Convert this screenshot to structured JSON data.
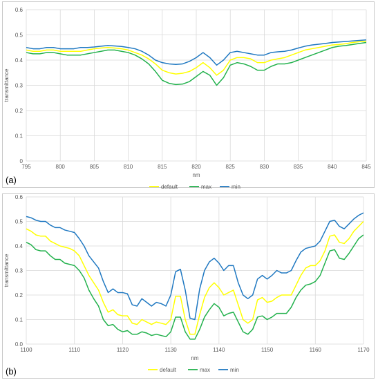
{
  "chart_data": [
    {
      "type": "line",
      "panel_label": "(a)",
      "xlabel": "nm",
      "ylabel": "transmittance",
      "xlim": [
        795,
        845
      ],
      "ylim": [
        0,
        0.6
      ],
      "xticks": [
        795,
        800,
        805,
        810,
        815,
        820,
        825,
        830,
        835,
        840,
        845
      ],
      "yticks": [
        0,
        0.1,
        0.2,
        0.3,
        0.4,
        0.5,
        0.6
      ],
      "ytick_labels": [
        "0",
        "0.1",
        "0.2",
        "0.3",
        "0.4",
        "0.5",
        "0.6"
      ],
      "grid": true,
      "legend_position": "bottom",
      "x": [
        795,
        796,
        797,
        798,
        799,
        800,
        801,
        802,
        803,
        804,
        805,
        806,
        807,
        808,
        809,
        810,
        811,
        812,
        813,
        814,
        815,
        816,
        817,
        818,
        819,
        820,
        821,
        822,
        823,
        824,
        825,
        826,
        827,
        828,
        829,
        830,
        831,
        832,
        833,
        834,
        835,
        836,
        837,
        838,
        839,
        840,
        841,
        842,
        843,
        844,
        845
      ],
      "series": [
        {
          "name": "default",
          "color": "#ffff00",
          "values": [
            0.44,
            0.435,
            0.435,
            0.44,
            0.44,
            0.435,
            0.435,
            0.435,
            0.435,
            0.44,
            0.445,
            0.448,
            0.45,
            0.448,
            0.445,
            0.44,
            0.43,
            0.42,
            0.405,
            0.385,
            0.36,
            0.35,
            0.345,
            0.348,
            0.355,
            0.37,
            0.39,
            0.37,
            0.34,
            0.36,
            0.4,
            0.41,
            0.41,
            0.405,
            0.39,
            0.39,
            0.4,
            0.405,
            0.41,
            0.42,
            0.43,
            0.44,
            0.445,
            0.45,
            0.455,
            0.46,
            0.462,
            0.465,
            0.47,
            0.473,
            0.475
          ]
        },
        {
          "name": "max",
          "color": "#22b14c",
          "values": [
            0.43,
            0.425,
            0.425,
            0.43,
            0.43,
            0.425,
            0.42,
            0.42,
            0.42,
            0.425,
            0.43,
            0.435,
            0.44,
            0.44,
            0.435,
            0.43,
            0.42,
            0.405,
            0.385,
            0.355,
            0.32,
            0.308,
            0.303,
            0.305,
            0.315,
            0.335,
            0.355,
            0.34,
            0.3,
            0.33,
            0.38,
            0.39,
            0.385,
            0.375,
            0.36,
            0.36,
            0.375,
            0.385,
            0.385,
            0.39,
            0.4,
            0.41,
            0.42,
            0.43,
            0.44,
            0.45,
            0.455,
            0.458,
            0.462,
            0.466,
            0.47
          ]
        },
        {
          "name": "min",
          "color": "#1f78c1",
          "values": [
            0.45,
            0.445,
            0.445,
            0.45,
            0.45,
            0.445,
            0.445,
            0.445,
            0.45,
            0.45,
            0.452,
            0.455,
            0.458,
            0.456,
            0.454,
            0.45,
            0.445,
            0.435,
            0.42,
            0.4,
            0.39,
            0.385,
            0.383,
            0.385,
            0.395,
            0.41,
            0.43,
            0.41,
            0.38,
            0.4,
            0.43,
            0.435,
            0.43,
            0.425,
            0.42,
            0.42,
            0.43,
            0.433,
            0.435,
            0.44,
            0.448,
            0.455,
            0.46,
            0.463,
            0.466,
            0.47,
            0.472,
            0.474,
            0.476,
            0.478,
            0.48
          ]
        }
      ]
    },
    {
      "type": "line",
      "panel_label": "(b)",
      "xlabel": "nm",
      "ylabel": "transmittance",
      "xlim": [
        1100,
        1170
      ],
      "ylim": [
        0,
        0.6
      ],
      "xticks": [
        1100,
        1110,
        1120,
        1130,
        1140,
        1150,
        1160,
        1170
      ],
      "yticks": [
        0,
        0.1,
        0.2,
        0.3,
        0.4,
        0.5,
        0.6
      ],
      "ytick_labels": [
        "0.0",
        "0.1",
        "0.2",
        "0.3",
        "0.4",
        "0.5",
        "0.6"
      ],
      "grid": true,
      "legend_position": "bottom",
      "x": [
        1100,
        1101,
        1102,
        1103,
        1104,
        1105,
        1106,
        1107,
        1108,
        1109,
        1110,
        1111,
        1112,
        1113,
        1114,
        1115,
        1116,
        1117,
        1118,
        1119,
        1120,
        1121,
        1122,
        1123,
        1124,
        1125,
        1126,
        1127,
        1128,
        1129,
        1130,
        1131,
        1132,
        1133,
        1134,
        1135,
        1136,
        1137,
        1138,
        1139,
        1140,
        1141,
        1142,
        1143,
        1144,
        1145,
        1146,
        1147,
        1148,
        1149,
        1150,
        1151,
        1152,
        1153,
        1154,
        1155,
        1156,
        1157,
        1158,
        1159,
        1160,
        1161,
        1162,
        1163,
        1164,
        1165,
        1166,
        1167,
        1168,
        1169,
        1170
      ],
      "series": [
        {
          "name": "default",
          "color": "#ffff00",
          "values": [
            0.47,
            0.46,
            0.445,
            0.44,
            0.44,
            0.42,
            0.41,
            0.4,
            0.395,
            0.39,
            0.38,
            0.36,
            0.32,
            0.28,
            0.25,
            0.22,
            0.17,
            0.13,
            0.14,
            0.12,
            0.115,
            0.115,
            0.085,
            0.08,
            0.1,
            0.09,
            0.08,
            0.09,
            0.085,
            0.08,
            0.1,
            0.195,
            0.195,
            0.1,
            0.04,
            0.04,
            0.12,
            0.19,
            0.23,
            0.25,
            0.23,
            0.2,
            0.21,
            0.22,
            0.16,
            0.1,
            0.085,
            0.1,
            0.18,
            0.19,
            0.17,
            0.175,
            0.19,
            0.2,
            0.2,
            0.2,
            0.24,
            0.28,
            0.31,
            0.32,
            0.32,
            0.34,
            0.38,
            0.44,
            0.445,
            0.415,
            0.41,
            0.43,
            0.46,
            0.48,
            0.5
          ]
        },
        {
          "name": "max",
          "color": "#22b14c",
          "values": [
            0.415,
            0.405,
            0.385,
            0.38,
            0.38,
            0.36,
            0.345,
            0.345,
            0.33,
            0.325,
            0.32,
            0.3,
            0.27,
            0.22,
            0.185,
            0.155,
            0.1,
            0.075,
            0.08,
            0.06,
            0.05,
            0.055,
            0.04,
            0.04,
            0.05,
            0.045,
            0.035,
            0.04,
            0.035,
            0.03,
            0.05,
            0.11,
            0.11,
            0.05,
            0.02,
            0.02,
            0.06,
            0.11,
            0.14,
            0.165,
            0.15,
            0.115,
            0.125,
            0.13,
            0.09,
            0.05,
            0.04,
            0.06,
            0.11,
            0.115,
            0.1,
            0.11,
            0.125,
            0.125,
            0.125,
            0.15,
            0.19,
            0.22,
            0.24,
            0.245,
            0.255,
            0.28,
            0.33,
            0.38,
            0.385,
            0.35,
            0.345,
            0.37,
            0.4,
            0.43,
            0.445
          ]
        },
        {
          "name": "min",
          "color": "#1f78c1",
          "values": [
            0.52,
            0.515,
            0.505,
            0.5,
            0.5,
            0.485,
            0.475,
            0.475,
            0.465,
            0.46,
            0.455,
            0.43,
            0.4,
            0.36,
            0.335,
            0.31,
            0.255,
            0.21,
            0.225,
            0.21,
            0.21,
            0.205,
            0.16,
            0.155,
            0.185,
            0.17,
            0.155,
            0.17,
            0.165,
            0.155,
            0.2,
            0.295,
            0.305,
            0.22,
            0.105,
            0.1,
            0.225,
            0.3,
            0.335,
            0.35,
            0.33,
            0.3,
            0.32,
            0.32,
            0.25,
            0.2,
            0.185,
            0.2,
            0.265,
            0.28,
            0.265,
            0.28,
            0.3,
            0.29,
            0.29,
            0.3,
            0.34,
            0.375,
            0.39,
            0.395,
            0.4,
            0.42,
            0.46,
            0.5,
            0.505,
            0.48,
            0.47,
            0.49,
            0.51,
            0.525,
            0.535
          ]
        }
      ]
    }
  ]
}
